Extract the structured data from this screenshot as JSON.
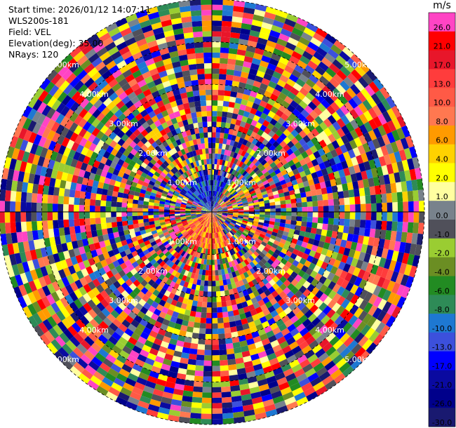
{
  "info": {
    "start_time": "Start time: 2026/01/12 14:07:11",
    "instrument": "WLS200s-181",
    "field": "Field: VEL",
    "elevation": "Elevation(deg): 35.00",
    "nrays": "NRays: 120"
  },
  "colorbar": {
    "unit": "m/s",
    "levels": [
      {
        "label": "26.0",
        "color": "#ff44c4"
      },
      {
        "label": "21.0",
        "color": "#ff0000"
      },
      {
        "label": "17.0",
        "color": "#e8162a"
      },
      {
        "label": "13.0",
        "color": "#ff3c3c"
      },
      {
        "label": "10.0",
        "color": "#ff5a46"
      },
      {
        "label": "8.0",
        "color": "#ff7850"
      },
      {
        "label": "6.0",
        "color": "#ff9a00"
      },
      {
        "label": "4.0",
        "color": "#ffd200"
      },
      {
        "label": "2.0",
        "color": "#ffff00"
      },
      {
        "label": "1.0",
        "color": "#ffffa0"
      },
      {
        "label": "0.0",
        "color": "#78828c"
      },
      {
        "label": "-1.0",
        "color": "#50505a"
      },
      {
        "label": "-2.0",
        "color": "#9acd32"
      },
      {
        "label": "-4.0",
        "color": "#6b8e23"
      },
      {
        "label": "-6.0",
        "color": "#228b22"
      },
      {
        "label": "-8.0",
        "color": "#2e8b57"
      },
      {
        "label": "-10.0",
        "color": "#1e78d2"
      },
      {
        "label": "-13.0",
        "color": "#3c50dc"
      },
      {
        "label": "-17.0",
        "color": "#0000ff"
      },
      {
        "label": "-21.0",
        "color": "#0a0aa0"
      },
      {
        "label": "-26.0",
        "color": "#00008b"
      },
      {
        "label": "-30.0",
        "color": "#191970"
      }
    ]
  },
  "chart_data": {
    "type": "heatmap",
    "projection": "polar PPI",
    "field": "VEL",
    "unit": "m/s",
    "nrays": 120,
    "ray_step_deg": 3,
    "elevation_deg": 35.0,
    "max_range_km": 5.0,
    "range_ring_labels": [
      "1.00km",
      "2.00km",
      "3.00km",
      "4.00km",
      "5.00km"
    ],
    "range_ring_km": [
      1,
      2,
      3,
      4,
      5
    ],
    "label_bearings_deg": [
      45,
      135,
      225,
      315
    ],
    "color_levels": [
      26.0,
      21.0,
      17.0,
      13.0,
      10.0,
      8.0,
      6.0,
      4.0,
      2.0,
      1.0,
      0.0,
      -1.0,
      -2.0,
      -4.0,
      -6.0,
      -8.0,
      -10.0,
      -13.0,
      -17.0,
      -21.0,
      -26.0,
      -30.0
    ],
    "description_of_pattern": "mostly noisy velocities at all ranges; near center, negative (blue/green) to the north-northwest and positive (red/orange) to the south-southwest"
  }
}
